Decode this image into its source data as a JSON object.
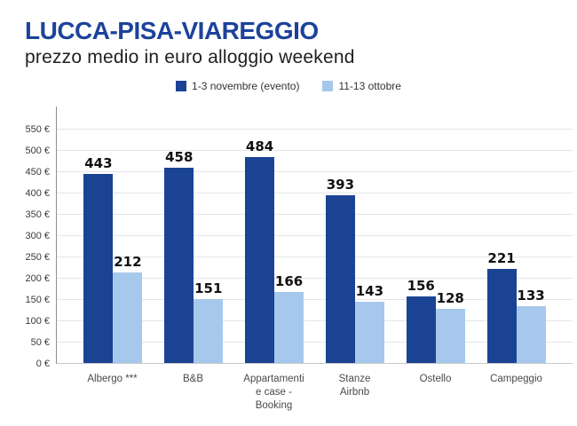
{
  "header": {
    "title": "LUCCA-PISA-VIAREGGIO",
    "subtitle": "prezzo medio in euro alloggio weekend"
  },
  "colors": {
    "title": "#1C439B",
    "series_dark": "#1B4394",
    "series_light": "#A6C8EC",
    "gridline": "#E3E5E7",
    "axis_line": "#8E8E8E",
    "baseline": "#C9C9C9",
    "value_label": "#111111"
  },
  "chart_data": {
    "type": "bar",
    "title": "LUCCA-PISA-VIAREGGIO",
    "subtitle": "prezzo medio in euro alloggio weekend",
    "categories": [
      "Albergo ***",
      "B&B",
      "Appartamenti\ne case -\nBooking",
      "Stanze\nAirbnb",
      "Ostello",
      "Campeggio"
    ],
    "series": [
      {
        "name": "1-3 novembre (evento)",
        "color": "#1B4394",
        "values": [
          443,
          458,
          484,
          393,
          156,
          221
        ]
      },
      {
        "name": "11-13 ottobre",
        "color": "#A6C8EC",
        "values": [
          212,
          151,
          166,
          143,
          128,
          133
        ]
      }
    ],
    "xlabel": "",
    "ylabel": "",
    "y_ticks": [
      0,
      50,
      100,
      150,
      200,
      250,
      300,
      350,
      400,
      450,
      500,
      550
    ],
    "y_tick_suffix": " €",
    "ylim": [
      0,
      600
    ],
    "grid": true,
    "legend_position": "top-center",
    "value_labels": true
  }
}
